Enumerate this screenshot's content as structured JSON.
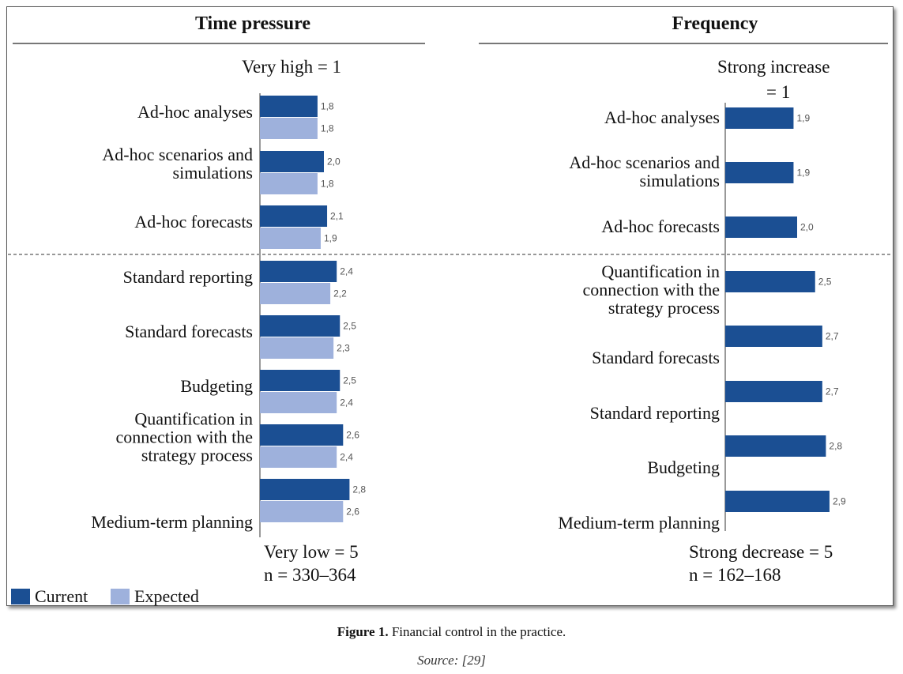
{
  "colors": {
    "current": "#1b4f93",
    "expected": "#9eb1dc"
  },
  "panels": {
    "left": {
      "title": "Time pressure",
      "top_label": "Very high = 1",
      "bottom_label": "Very low = 5",
      "n_label": "n = 330–364"
    },
    "right": {
      "title": "Frequency",
      "top_label_1": "Strong increase",
      "top_label_2": "= 1",
      "bottom_label": "Strong decrease = 5",
      "n_label": "n = 162–168"
    }
  },
  "legend": {
    "current": "Current",
    "expected": "Expected"
  },
  "chart_data": [
    {
      "type": "bar",
      "orientation": "horizontal",
      "title": "Time pressure",
      "categories": [
        [
          "Ad-hoc analyses"
        ],
        [
          "Ad-hoc scenarios and",
          "simulations"
        ],
        [
          "Ad-hoc forecasts"
        ],
        [
          "Standard reporting"
        ],
        [
          "Standard forecasts"
        ],
        [
          "Budgeting"
        ],
        [
          "Quantification in",
          "connection with the",
          "strategy process"
        ],
        [
          "Medium-term planning"
        ]
      ],
      "series": [
        {
          "name": "Current",
          "values": [
            1.8,
            2.0,
            2.1,
            2.4,
            2.5,
            2.5,
            2.6,
            2.8
          ],
          "labels": [
            "1,8",
            "2,0",
            "2,1",
            "2,4",
            "2,5",
            "2,5",
            "2,6",
            "2,8"
          ]
        },
        {
          "name": "Expected",
          "values": [
            1.8,
            1.8,
            1.9,
            2.2,
            2.3,
            2.4,
            2.4,
            2.6
          ],
          "labels": [
            "1,8",
            "1,8",
            "1,9",
            "2,2",
            "2,3",
            "2,4",
            "2,4",
            "2,6"
          ]
        }
      ],
      "xlim": [
        1,
        5
      ]
    },
    {
      "type": "bar",
      "orientation": "horizontal",
      "title": "Frequency",
      "categories": [
        [
          "Ad-hoc analyses"
        ],
        [
          "Ad-hoc scenarios and",
          "simulations"
        ],
        [
          "Ad-hoc forecasts"
        ],
        [
          "Quantification in",
          "connection with the",
          "strategy process"
        ],
        [
          "Standard forecasts"
        ],
        [
          "Standard reporting"
        ],
        [
          "Budgeting"
        ],
        [
          "Medium-term planning"
        ]
      ],
      "series": [
        {
          "name": "Current",
          "values": [
            1.9,
            1.9,
            2.0,
            2.5,
            2.7,
            2.7,
            2.8,
            2.9
          ],
          "labels": [
            "1,9",
            "1,9",
            "2,0",
            "2,5",
            "2,7",
            "2,7",
            "2,8",
            "2,9"
          ]
        }
      ],
      "xlim": [
        1,
        5
      ]
    }
  ],
  "caption": {
    "prefix": "Figure 1.",
    "text": " Financial control in the practice."
  },
  "source": "Source: [29]"
}
